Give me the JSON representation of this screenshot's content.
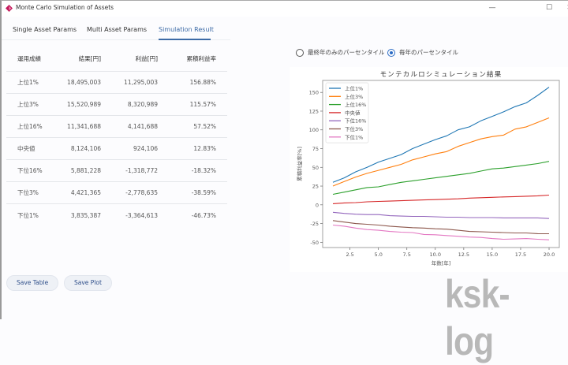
{
  "window": {
    "title": "Monte Carlo Simulation of Assets",
    "controls": {
      "minimize": "—",
      "maximize": "☐",
      "close": "✕"
    }
  },
  "tabs": [
    {
      "label": "Single Asset Params",
      "active": false
    },
    {
      "label": "Multi Asset Params",
      "active": false
    },
    {
      "label": "Simulation Result",
      "active": true
    }
  ],
  "table": {
    "headers": [
      "運用成績",
      "結果[円]",
      "利益[円]",
      "累積利益率"
    ],
    "rows": [
      [
        "上位1%",
        "18,495,003",
        "11,295,003",
        "156.88%"
      ],
      [
        "上位3%",
        "15,520,989",
        "8,320,989",
        "115.57%"
      ],
      [
        "上位16%",
        "11,341,688",
        "4,141,688",
        "57.52%"
      ],
      [
        "中央値",
        "8,124,106",
        "924,106",
        "12.83%"
      ],
      [
        "下位16%",
        "5,881,228",
        "-1,318,772",
        "-18.32%"
      ],
      [
        "下位3%",
        "4,421,365",
        "-2,778,635",
        "-38.59%"
      ],
      [
        "下位1%",
        "3,835,387",
        "-3,364,613",
        "-46.73%"
      ]
    ]
  },
  "buttons": {
    "save_table": "Save Table",
    "save_plot": "Save Plot"
  },
  "radio": {
    "options": [
      {
        "label": "最終年のみのパーセンタイル",
        "checked": false
      },
      {
        "label": "毎年のパーセンタイル",
        "checked": true
      }
    ]
  },
  "watermark": "ksk-log",
  "chart_data": {
    "type": "line",
    "title": "モンテカルロシミュレーション結果",
    "xlabel": "年数[年]",
    "ylabel": "累積利益率[%]",
    "xlim": [
      0.1,
      20.9
    ],
    "ylim": [
      -57,
      166
    ],
    "xticks": [
      2.5,
      5.0,
      7.5,
      10.0,
      12.5,
      15.0,
      17.5,
      20.0
    ],
    "xtick_labels": [
      "2.5",
      "5.0",
      "7.5",
      "10.0",
      "12.5",
      "15.0",
      "17.5",
      "20.0"
    ],
    "yticks": [
      -50,
      -25,
      0,
      25,
      50,
      75,
      100,
      125,
      150
    ],
    "grid": false,
    "legend_position": "upper left",
    "x": [
      1,
      2,
      3,
      4,
      5,
      6,
      7,
      8,
      9,
      10,
      11,
      12,
      13,
      14,
      15,
      16,
      17,
      18,
      19,
      20
    ],
    "series": [
      {
        "name": "上位1%",
        "color": "#1f77b4",
        "values": [
          30,
          36,
          44,
          50,
          57,
          62,
          67,
          75,
          81,
          87,
          92,
          100,
          104,
          112,
          118,
          124,
          131,
          136,
          146,
          157
        ]
      },
      {
        "name": "上位3%",
        "color": "#ff7f0e",
        "values": [
          25,
          31,
          37,
          42,
          46,
          50,
          54,
          60,
          64,
          68,
          71,
          78,
          83,
          88,
          91,
          93,
          101,
          104,
          110,
          116
        ]
      },
      {
        "name": "上位16%",
        "color": "#2ca02c",
        "values": [
          14,
          17,
          20,
          23,
          24,
          27,
          30,
          32,
          34,
          36,
          38,
          40,
          42,
          45,
          48,
          49,
          51,
          53,
          55,
          58
        ]
      },
      {
        "name": "中央値",
        "color": "#d62728",
        "values": [
          1.5,
          2.5,
          3,
          4,
          4.5,
          5,
          5.5,
          6,
          6.5,
          7,
          7.5,
          8,
          9,
          9.5,
          10,
          10.5,
          11,
          11.5,
          12,
          13
        ]
      },
      {
        "name": "下位16%",
        "color": "#9467bd",
        "values": [
          -10,
          -11.5,
          -12.5,
          -13,
          -13,
          -14.5,
          -15,
          -15.5,
          -15.5,
          -16,
          -16.5,
          -16.5,
          -17,
          -17,
          -17,
          -17.5,
          -17.5,
          -17.5,
          -17.5,
          -18.3
        ]
      },
      {
        "name": "下位3%",
        "color": "#8c564b",
        "values": [
          -21,
          -23,
          -25,
          -26,
          -27,
          -28.5,
          -29.5,
          -30.5,
          -31,
          -32,
          -32.5,
          -34,
          -35.5,
          -36,
          -36.5,
          -37,
          -37.5,
          -37.5,
          -38.5,
          -38.6
        ]
      },
      {
        "name": "下位1%",
        "color": "#e377c2",
        "values": [
          -27,
          -28.5,
          -31,
          -33,
          -34,
          -35.5,
          -36.5,
          -37,
          -39.5,
          -40,
          -41,
          -42,
          -43,
          -43.5,
          -45,
          -46,
          -45.5,
          -45,
          -46,
          -46.7
        ]
      }
    ]
  }
}
